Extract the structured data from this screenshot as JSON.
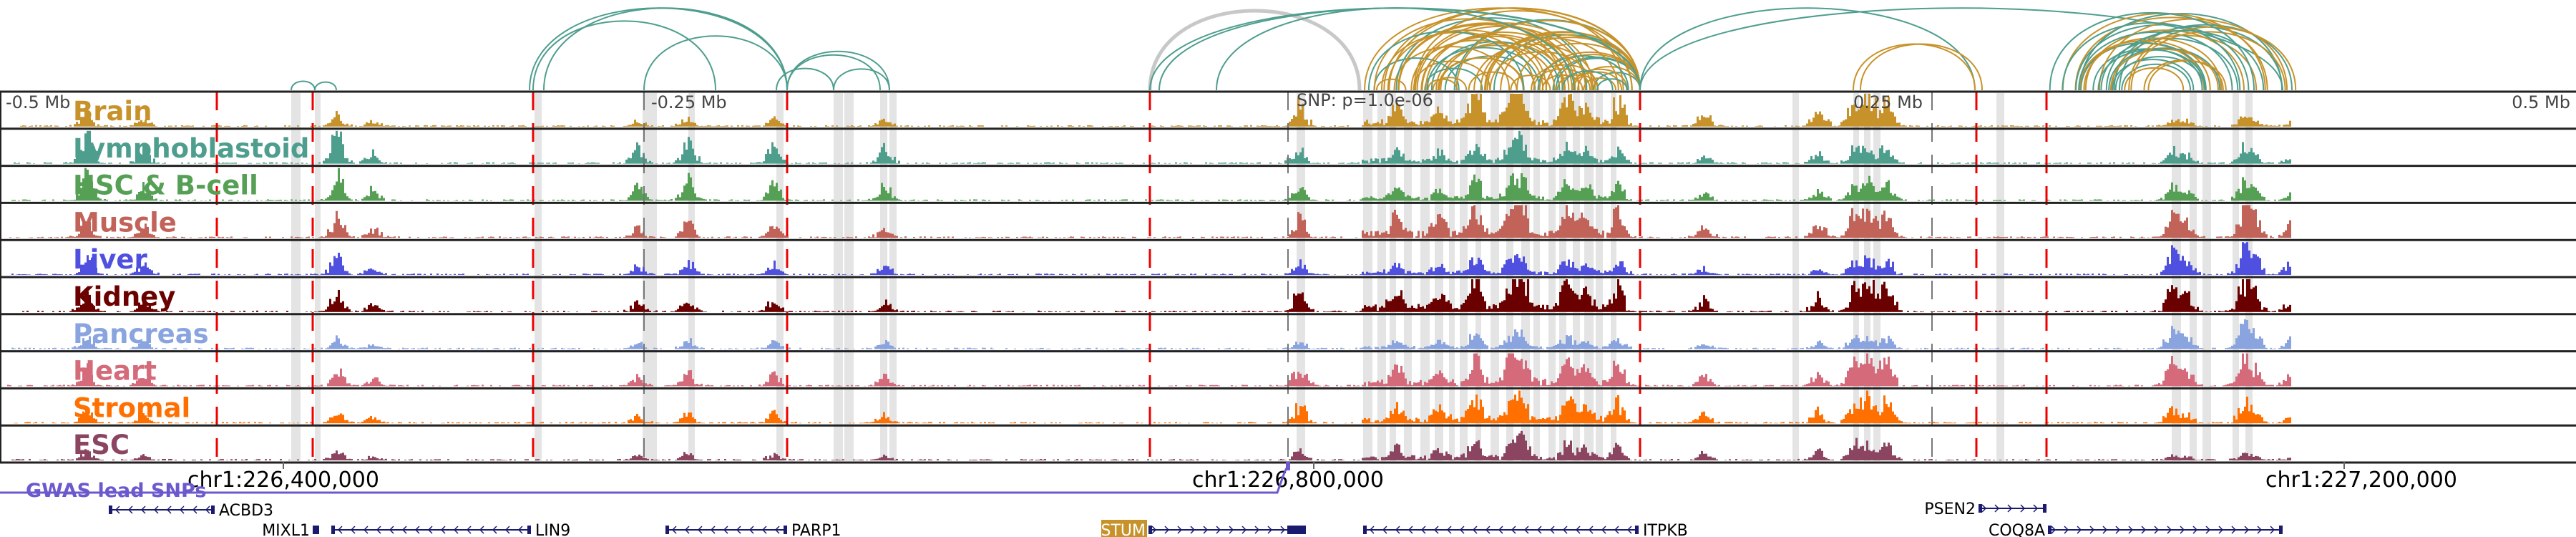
{
  "axis": {
    "left": "-0.5 Mb",
    "left_mid": "-0.25 Mb",
    "snp": "SNP: p=1.0e-06",
    "right_mid": "0.25 Mb",
    "right": "0.5 Mb"
  },
  "tracks": [
    {
      "label": "Brain",
      "color": "#c8922a"
    },
    {
      "label": "Lymphoblastoid",
      "color": "#4e9e8e"
    },
    {
      "label": "HSC & B-cell",
      "color": "#55a055"
    },
    {
      "label": "Muscle",
      "color": "#c2635a"
    },
    {
      "label": "Liver",
      "color": "#5050e0"
    },
    {
      "label": "Kidney",
      "color": "#6b0000"
    },
    {
      "label": "Pancreas",
      "color": "#8aa4e0"
    },
    {
      "label": "Heart",
      "color": "#d46a7a"
    },
    {
      "label": "Stromal",
      "color": "#ff7000"
    },
    {
      "label": "ESC",
      "color": "#8b4560"
    }
  ],
  "coordinates": [
    "chr1:226,400,000",
    "chr1:226,800,000",
    "chr1:227,200,000"
  ],
  "gwas_label": "GWAS lead SNPs",
  "gwas_color": "#6a5acd",
  "genes": [
    {
      "name": "ACBD3",
      "strand": "-"
    },
    {
      "name": "MIXL1",
      "strand": "+"
    },
    {
      "name": "LIN9",
      "strand": "-"
    },
    {
      "name": "PARP1",
      "strand": "-"
    },
    {
      "name": "STUM",
      "strand": "+",
      "highlight": "#c8922a"
    },
    {
      "name": "ITPKB",
      "strand": "-"
    },
    {
      "name": "PSEN2",
      "strand": "+"
    },
    {
      "name": "COQ8A",
      "strand": "+"
    }
  ],
  "colors": {
    "loop_green": "#4e9e8e",
    "loop_gold": "#c8922a",
    "loop_gray": "#c8c8c8",
    "highlight_band": "#e4e4e4",
    "marker_red": "#ee0000",
    "gene_blue": "#1a1a6e"
  }
}
